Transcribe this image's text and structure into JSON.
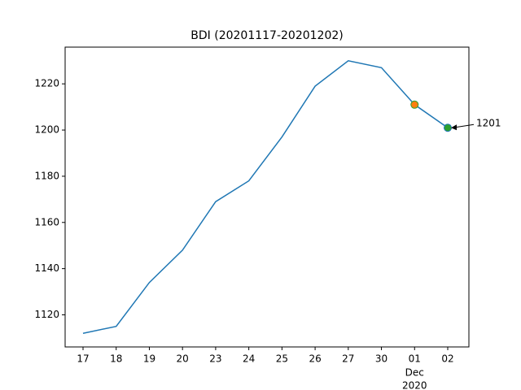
{
  "chart_data": {
    "type": "line",
    "title": "BDI (20201117-20201202)",
    "categories": [
      "17",
      "18",
      "19",
      "20",
      "23",
      "24",
      "25",
      "26",
      "27",
      "30",
      "01",
      "02"
    ],
    "x_period_label": [
      "Dec",
      "2020"
    ],
    "series": [
      {
        "name": "BDI",
        "color": "#1f77b4",
        "values": [
          1112,
          1115,
          1134,
          1148,
          1169,
          1178,
          1197,
          1219,
          1230,
          1227,
          1211,
          1201
        ]
      }
    ],
    "highlights": [
      {
        "index": 10,
        "color": "#ff7f0e",
        "edge": "#2ca02c"
      },
      {
        "index": 11,
        "color": "#2ca02c",
        "edge": "#1f77b4"
      }
    ],
    "annotation": {
      "text": "1201",
      "index": 11
    },
    "ylim": [
      1106.1,
      1235.9
    ],
    "yticks": [
      1120,
      1140,
      1160,
      1180,
      1200,
      1220
    ],
    "grid": false
  }
}
